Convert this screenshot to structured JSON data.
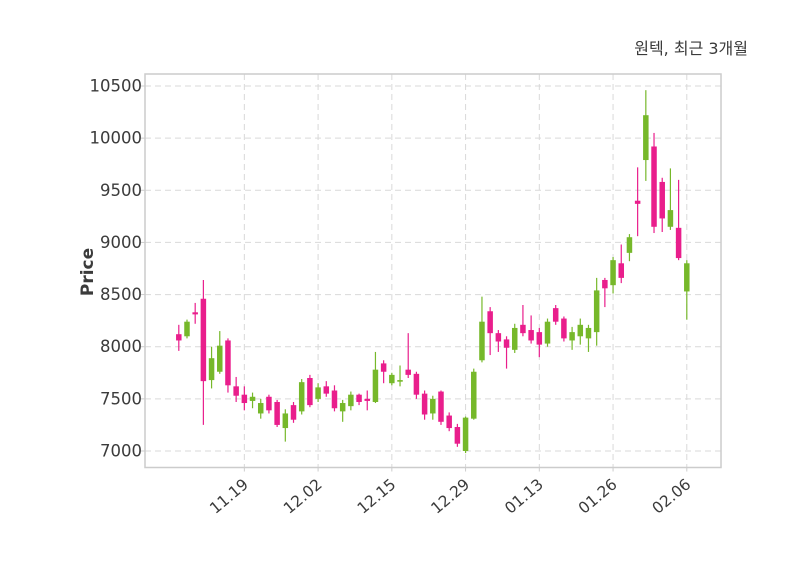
{
  "title": "원텍, 최근 3개월",
  "colors": {
    "up": "#76b82a",
    "down": "#e91e8c",
    "grid": "#d9d9d9",
    "border": "#cccccc",
    "axis_text": "#3b3b3b",
    "background": "#ffffff"
  },
  "chart_data": {
    "type": "candlestick",
    "title": "원텍, 최근 3개월",
    "ylabel": "Price",
    "xlabel": "",
    "grid": "on",
    "legend": "none",
    "ylim": [
      6840,
      10620
    ],
    "y_ticks": [
      7000,
      7500,
      8000,
      8500,
      9000,
      9500,
      10000,
      10500
    ],
    "x_tick_labels": [
      "11.19",
      "12.02",
      "12.15",
      "12.29",
      "01.13",
      "01.26",
      "02.06"
    ],
    "x_tick_indices": [
      8,
      17,
      26,
      35,
      44,
      53,
      62
    ],
    "candles_format": [
      "open",
      "high",
      "low",
      "close"
    ],
    "up_color_meaning": "close >= open",
    "candles": [
      [
        8120,
        8210,
        7960,
        8060
      ],
      [
        8100,
        8260,
        8080,
        8240
      ],
      [
        8330,
        8420,
        8220,
        8310
      ],
      [
        8460,
        8640,
        7250,
        7670
      ],
      [
        7680,
        8000,
        7600,
        7890
      ],
      [
        7760,
        8150,
        7740,
        8010
      ],
      [
        8060,
        8080,
        7560,
        7630
      ],
      [
        7620,
        7710,
        7470,
        7530
      ],
      [
        7540,
        7620,
        7390,
        7460
      ],
      [
        7480,
        7560,
        7410,
        7520
      ],
      [
        7360,
        7500,
        7310,
        7460
      ],
      [
        7520,
        7540,
        7360,
        7390
      ],
      [
        7470,
        7490,
        7230,
        7250
      ],
      [
        7220,
        7400,
        7090,
        7360
      ],
      [
        7440,
        7470,
        7270,
        7300
      ],
      [
        7380,
        7690,
        7350,
        7660
      ],
      [
        7700,
        7730,
        7420,
        7440
      ],
      [
        7500,
        7650,
        7470,
        7610
      ],
      [
        7620,
        7670,
        7520,
        7550
      ],
      [
        7580,
        7630,
        7380,
        7410
      ],
      [
        7380,
        7490,
        7280,
        7460
      ],
      [
        7430,
        7570,
        7390,
        7540
      ],
      [
        7540,
        7550,
        7440,
        7470
      ],
      [
        7500,
        7580,
        7390,
        7480
      ],
      [
        7470,
        7950,
        7460,
        7780
      ],
      [
        7840,
        7870,
        7650,
        7760
      ],
      [
        7650,
        7750,
        7630,
        7730
      ],
      [
        7670,
        7820,
        7620,
        7680
      ],
      [
        7780,
        8130,
        7700,
        7730
      ],
      [
        7740,
        7760,
        7500,
        7540
      ],
      [
        7550,
        7580,
        7300,
        7350
      ],
      [
        7360,
        7530,
        7300,
        7500
      ],
      [
        7570,
        7580,
        7250,
        7280
      ],
      [
        7340,
        7370,
        7190,
        7220
      ],
      [
        7230,
        7260,
        7040,
        7070
      ],
      [
        7000,
        7330,
        6980,
        7320
      ],
      [
        7310,
        7790,
        7300,
        7760
      ],
      [
        7870,
        8480,
        7850,
        8240
      ],
      [
        8340,
        8380,
        7920,
        8130
      ],
      [
        8130,
        8160,
        7950,
        8050
      ],
      [
        8070,
        8100,
        7790,
        7990
      ],
      [
        7970,
        8220,
        7940,
        8180
      ],
      [
        8210,
        8400,
        8100,
        8130
      ],
      [
        8160,
        8300,
        8030,
        8060
      ],
      [
        8140,
        8180,
        7900,
        8020
      ],
      [
        8030,
        8270,
        8000,
        8240
      ],
      [
        8370,
        8400,
        8210,
        8240
      ],
      [
        8270,
        8290,
        8050,
        8080
      ],
      [
        8060,
        8190,
        7970,
        8140
      ],
      [
        8100,
        8270,
        8020,
        8210
      ],
      [
        8080,
        8210,
        7950,
        8180
      ],
      [
        8140,
        8660,
        8010,
        8540
      ],
      [
        8640,
        8660,
        8380,
        8560
      ],
      [
        8590,
        8860,
        8510,
        8830
      ],
      [
        8800,
        8980,
        8610,
        8660
      ],
      [
        8900,
        9080,
        8820,
        9050
      ],
      [
        9400,
        9720,
        9060,
        9370
      ],
      [
        9790,
        10460,
        9590,
        10220
      ],
      [
        9920,
        10050,
        9090,
        9150
      ],
      [
        9580,
        9620,
        9100,
        9230
      ],
      [
        9150,
        9710,
        9120,
        9310
      ],
      [
        9140,
        9600,
        8830,
        8850
      ],
      [
        8530,
        8830,
        8260,
        8800
      ]
    ]
  }
}
